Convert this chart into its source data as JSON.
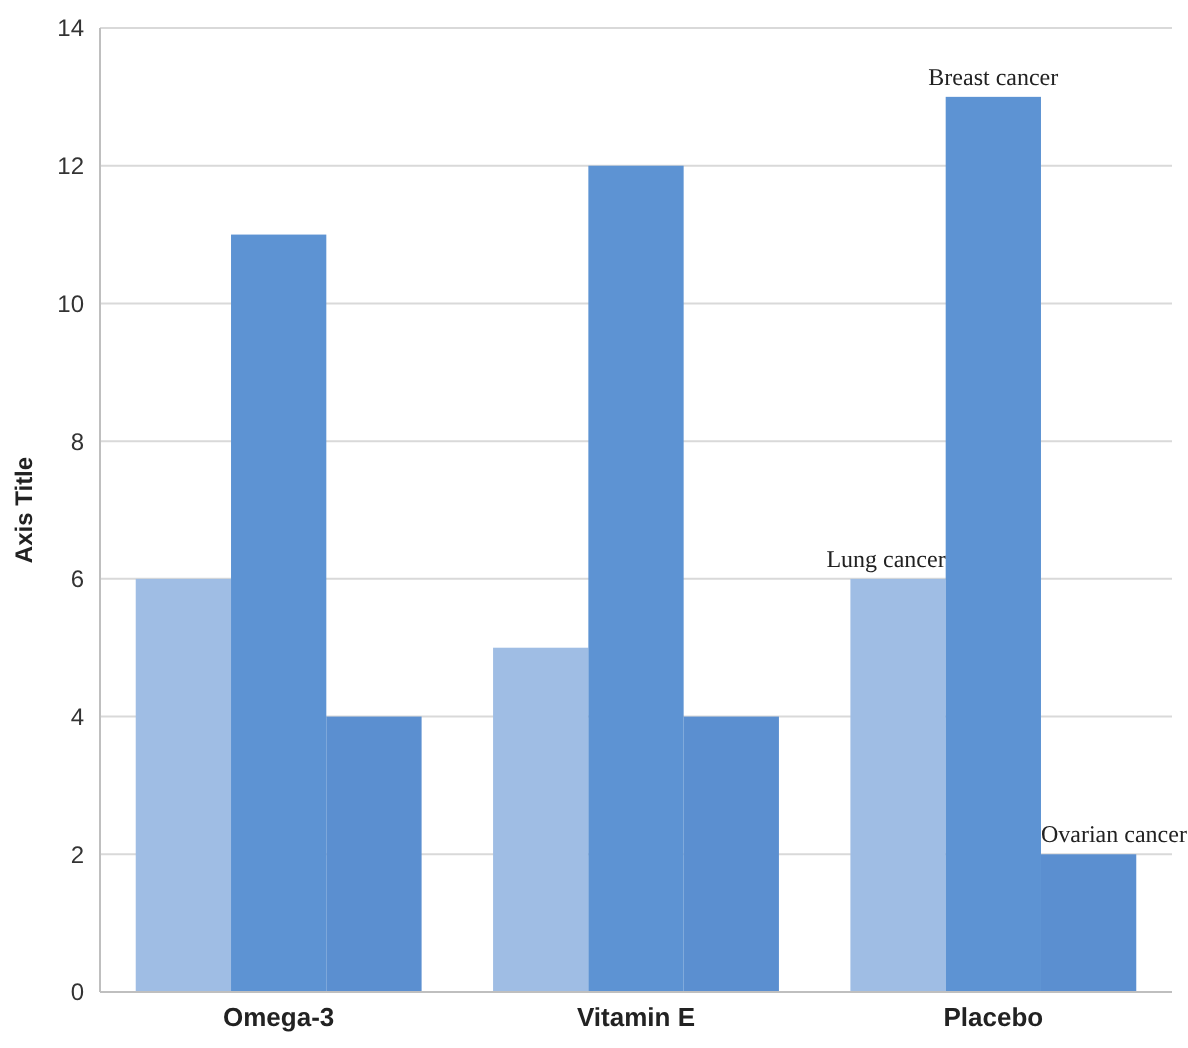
{
  "chart_data": {
    "type": "bar",
    "ylabel": "Axis Title",
    "categories": [
      "Omega-3",
      "Vitamin E",
      "Placebo"
    ],
    "series": [
      {
        "name": "Lung cancer",
        "color": "#9fbde4",
        "values": [
          6,
          5,
          6
        ]
      },
      {
        "name": "Breast cancer",
        "color": "#5d93d3",
        "values": [
          11,
          12,
          13
        ]
      },
      {
        "name": "Ovarian cancer",
        "color": "#5b8fd0",
        "values": [
          4,
          4,
          2
        ]
      }
    ],
    "ylim": [
      0,
      14
    ],
    "yticks": [
      0,
      2,
      4,
      6,
      8,
      10,
      12,
      14
    ],
    "grid": "y"
  }
}
